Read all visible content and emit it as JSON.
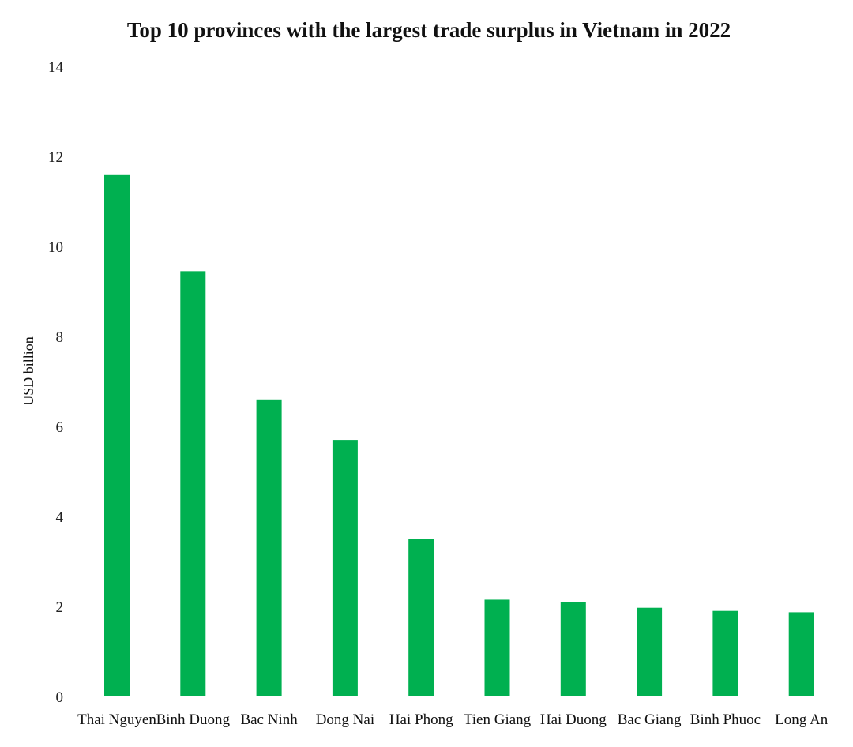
{
  "chart_data": {
    "type": "bar",
    "title": "Top 10 provinces with the largest trade surplus in Vietnam in 2022",
    "xlabel": "",
    "ylabel": "USD billion",
    "ylim": [
      0,
      14
    ],
    "yticks": [
      "0",
      "2",
      "4",
      "6",
      "8",
      "10",
      "12",
      "14"
    ],
    "categories": [
      "Thai Nguyen",
      "Binh Duong",
      "Bac Ninh",
      "Dong Nai",
      "Hai Phong",
      "Tien Giang",
      "Hai Duong",
      "Bac Giang",
      "Binh Phuoc",
      "Long An"
    ],
    "values": [
      11.6,
      9.45,
      6.6,
      5.7,
      3.5,
      2.15,
      2.1,
      1.97,
      1.9,
      1.87
    ],
    "bar_color": "#00b050",
    "grid": false,
    "legend": "none"
  }
}
